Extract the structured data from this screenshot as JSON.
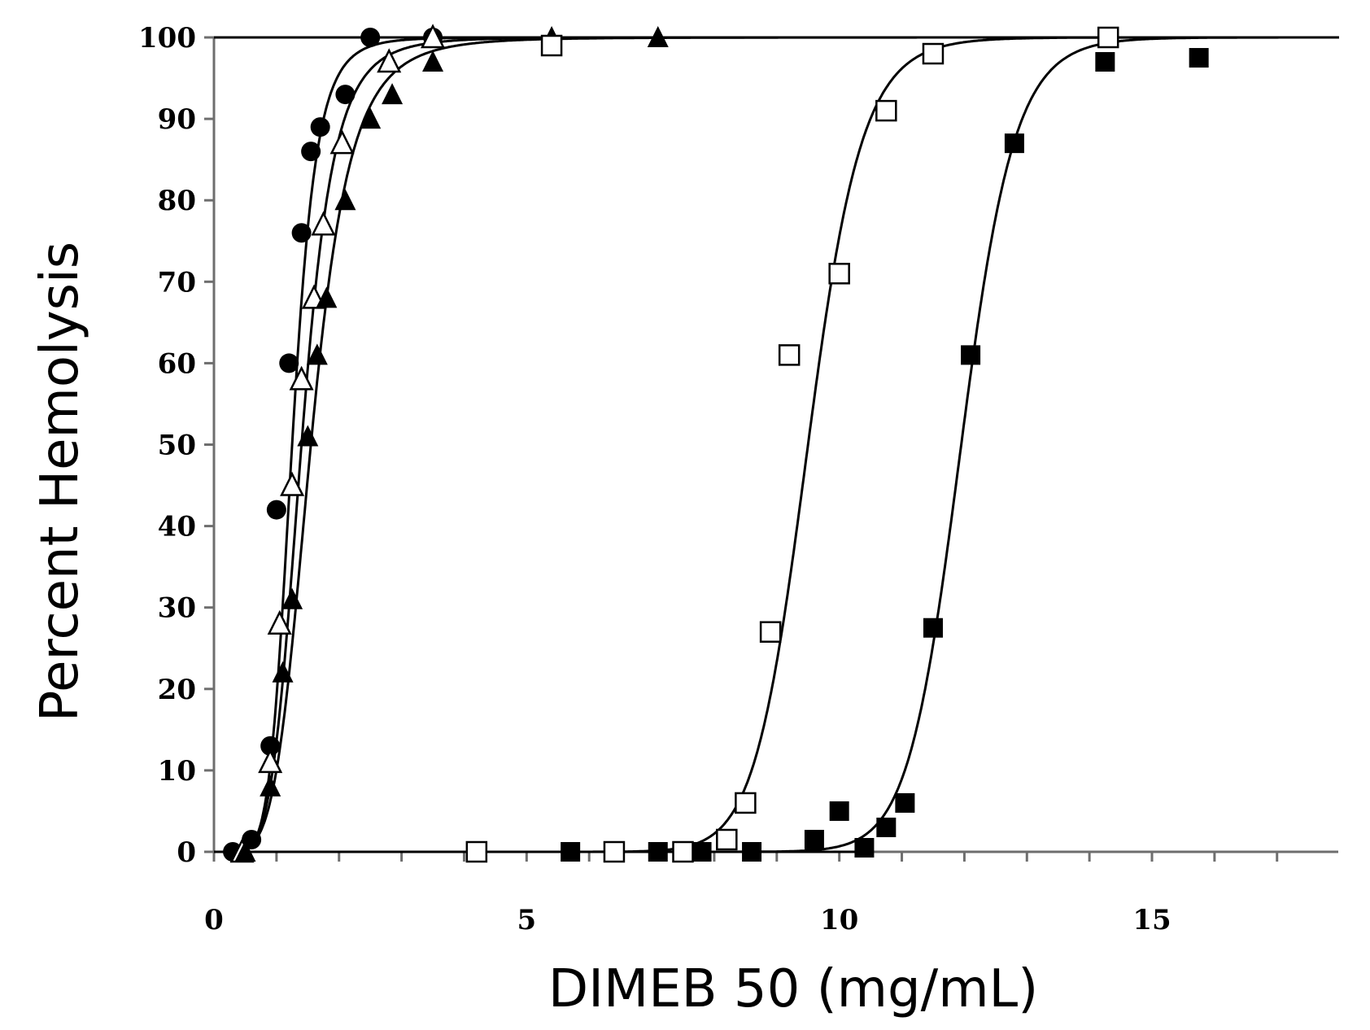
{
  "chart_data": {
    "type": "scatter",
    "title": "",
    "xlabel": "DIMEB 50 (mg/mL)",
    "ylabel": "Percent Hemolysis",
    "xlim": [
      0,
      18
    ],
    "ylim": [
      0,
      100
    ],
    "x_ticks": [
      0,
      5,
      10,
      15
    ],
    "y_ticks": [
      0,
      10,
      20,
      30,
      40,
      50,
      60,
      70,
      80,
      90,
      100
    ],
    "grid": false,
    "legend": "none",
    "series": [
      {
        "marker": "filled-circle",
        "fit": {
          "ec50": 1.25,
          "hill": 6.5
        },
        "points": [
          [
            0.3,
            0
          ],
          [
            0.6,
            1.5
          ],
          [
            0.9,
            13
          ],
          [
            1.0,
            42
          ],
          [
            1.2,
            60
          ],
          [
            1.4,
            76
          ],
          [
            1.55,
            86
          ],
          [
            1.7,
            89
          ],
          [
            2.1,
            93
          ],
          [
            2.5,
            100
          ],
          [
            3.5,
            100
          ]
        ]
      },
      {
        "marker": "open-triangle",
        "fit": {
          "ec50": 1.4,
          "hill": 5.5
        },
        "points": [
          [
            0.45,
            0
          ],
          [
            0.9,
            11
          ],
          [
            1.05,
            28
          ],
          [
            1.25,
            45
          ],
          [
            1.4,
            58
          ],
          [
            1.6,
            68
          ],
          [
            1.75,
            77
          ],
          [
            2.05,
            87
          ],
          [
            2.8,
            97
          ],
          [
            3.5,
            100
          ]
        ]
      },
      {
        "marker": "filled-triangle",
        "fit": {
          "ec50": 1.55,
          "hill": 5.0
        },
        "points": [
          [
            0.5,
            0
          ],
          [
            0.9,
            8
          ],
          [
            1.1,
            22
          ],
          [
            1.25,
            31
          ],
          [
            1.5,
            51
          ],
          [
            1.65,
            61
          ],
          [
            1.8,
            68
          ],
          [
            2.1,
            80
          ],
          [
            2.5,
            90
          ],
          [
            2.85,
            93
          ],
          [
            3.5,
            97
          ],
          [
            5.4,
            100
          ],
          [
            7.1,
            100
          ]
        ]
      },
      {
        "marker": "open-square",
        "fit": {
          "ec50": 9.5,
          "hill": 22
        },
        "points": [
          [
            4.2,
            0
          ],
          [
            6.4,
            0
          ],
          [
            7.5,
            0
          ],
          [
            8.2,
            1.5
          ],
          [
            8.5,
            6
          ],
          [
            8.9,
            27
          ],
          [
            9.2,
            61
          ],
          [
            10.0,
            71
          ],
          [
            10.75,
            91
          ],
          [
            11.5,
            98
          ],
          [
            14.3,
            100
          ],
          [
            5.4,
            99
          ]
        ]
      },
      {
        "marker": "filled-square",
        "fit": {
          "ec50": 11.95,
          "hill": 28
        },
        "points": [
          [
            5.7,
            0
          ],
          [
            7.1,
            0
          ],
          [
            7.8,
            0
          ],
          [
            8.6,
            0
          ],
          [
            9.6,
            1.5
          ],
          [
            10.0,
            5
          ],
          [
            10.4,
            0.5
          ],
          [
            10.75,
            3
          ],
          [
            11.05,
            6
          ],
          [
            11.5,
            27.5
          ],
          [
            12.1,
            61
          ],
          [
            12.8,
            87
          ],
          [
            14.25,
            97
          ],
          [
            15.75,
            97.5
          ]
        ]
      }
    ]
  }
}
